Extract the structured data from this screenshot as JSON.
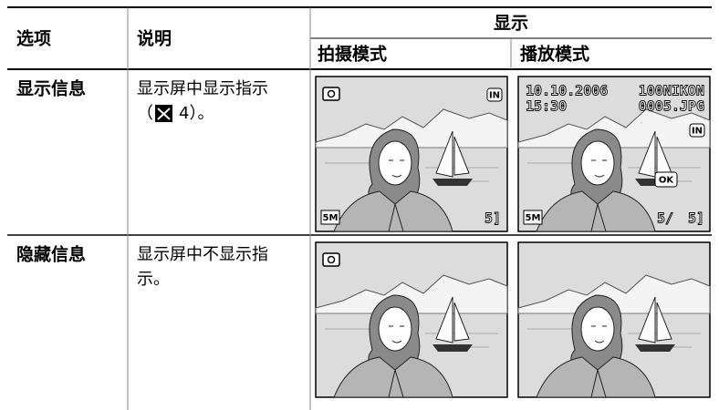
{
  "table": {
    "header": [
      "选项",
      "说明",
      "显示"
    ],
    "subheader": [
      "拍摄模式",
      "播放模式"
    ],
    "rows": [
      {
        "option": "显示信息",
        "description": [
          "显示屏中显示指示",
          "（",
          "4）。"
        ]
      },
      {
        "option": "隐藏信息",
        "description": [
          "显示屏中不显示指",
          "示。"
        ]
      }
    ]
  },
  "screens": {
    "shooting": {
      "size": "5M",
      "memory": "IN",
      "remaining": "5]"
    },
    "playback": {
      "date": "10.10.2006",
      "folder": "100NIKON",
      "time": "15:30",
      "file": "0005.JPG",
      "memory": "IN",
      "ok": "OK",
      "size": "5M",
      "frame": "5/",
      "remaining": "5]"
    }
  }
}
